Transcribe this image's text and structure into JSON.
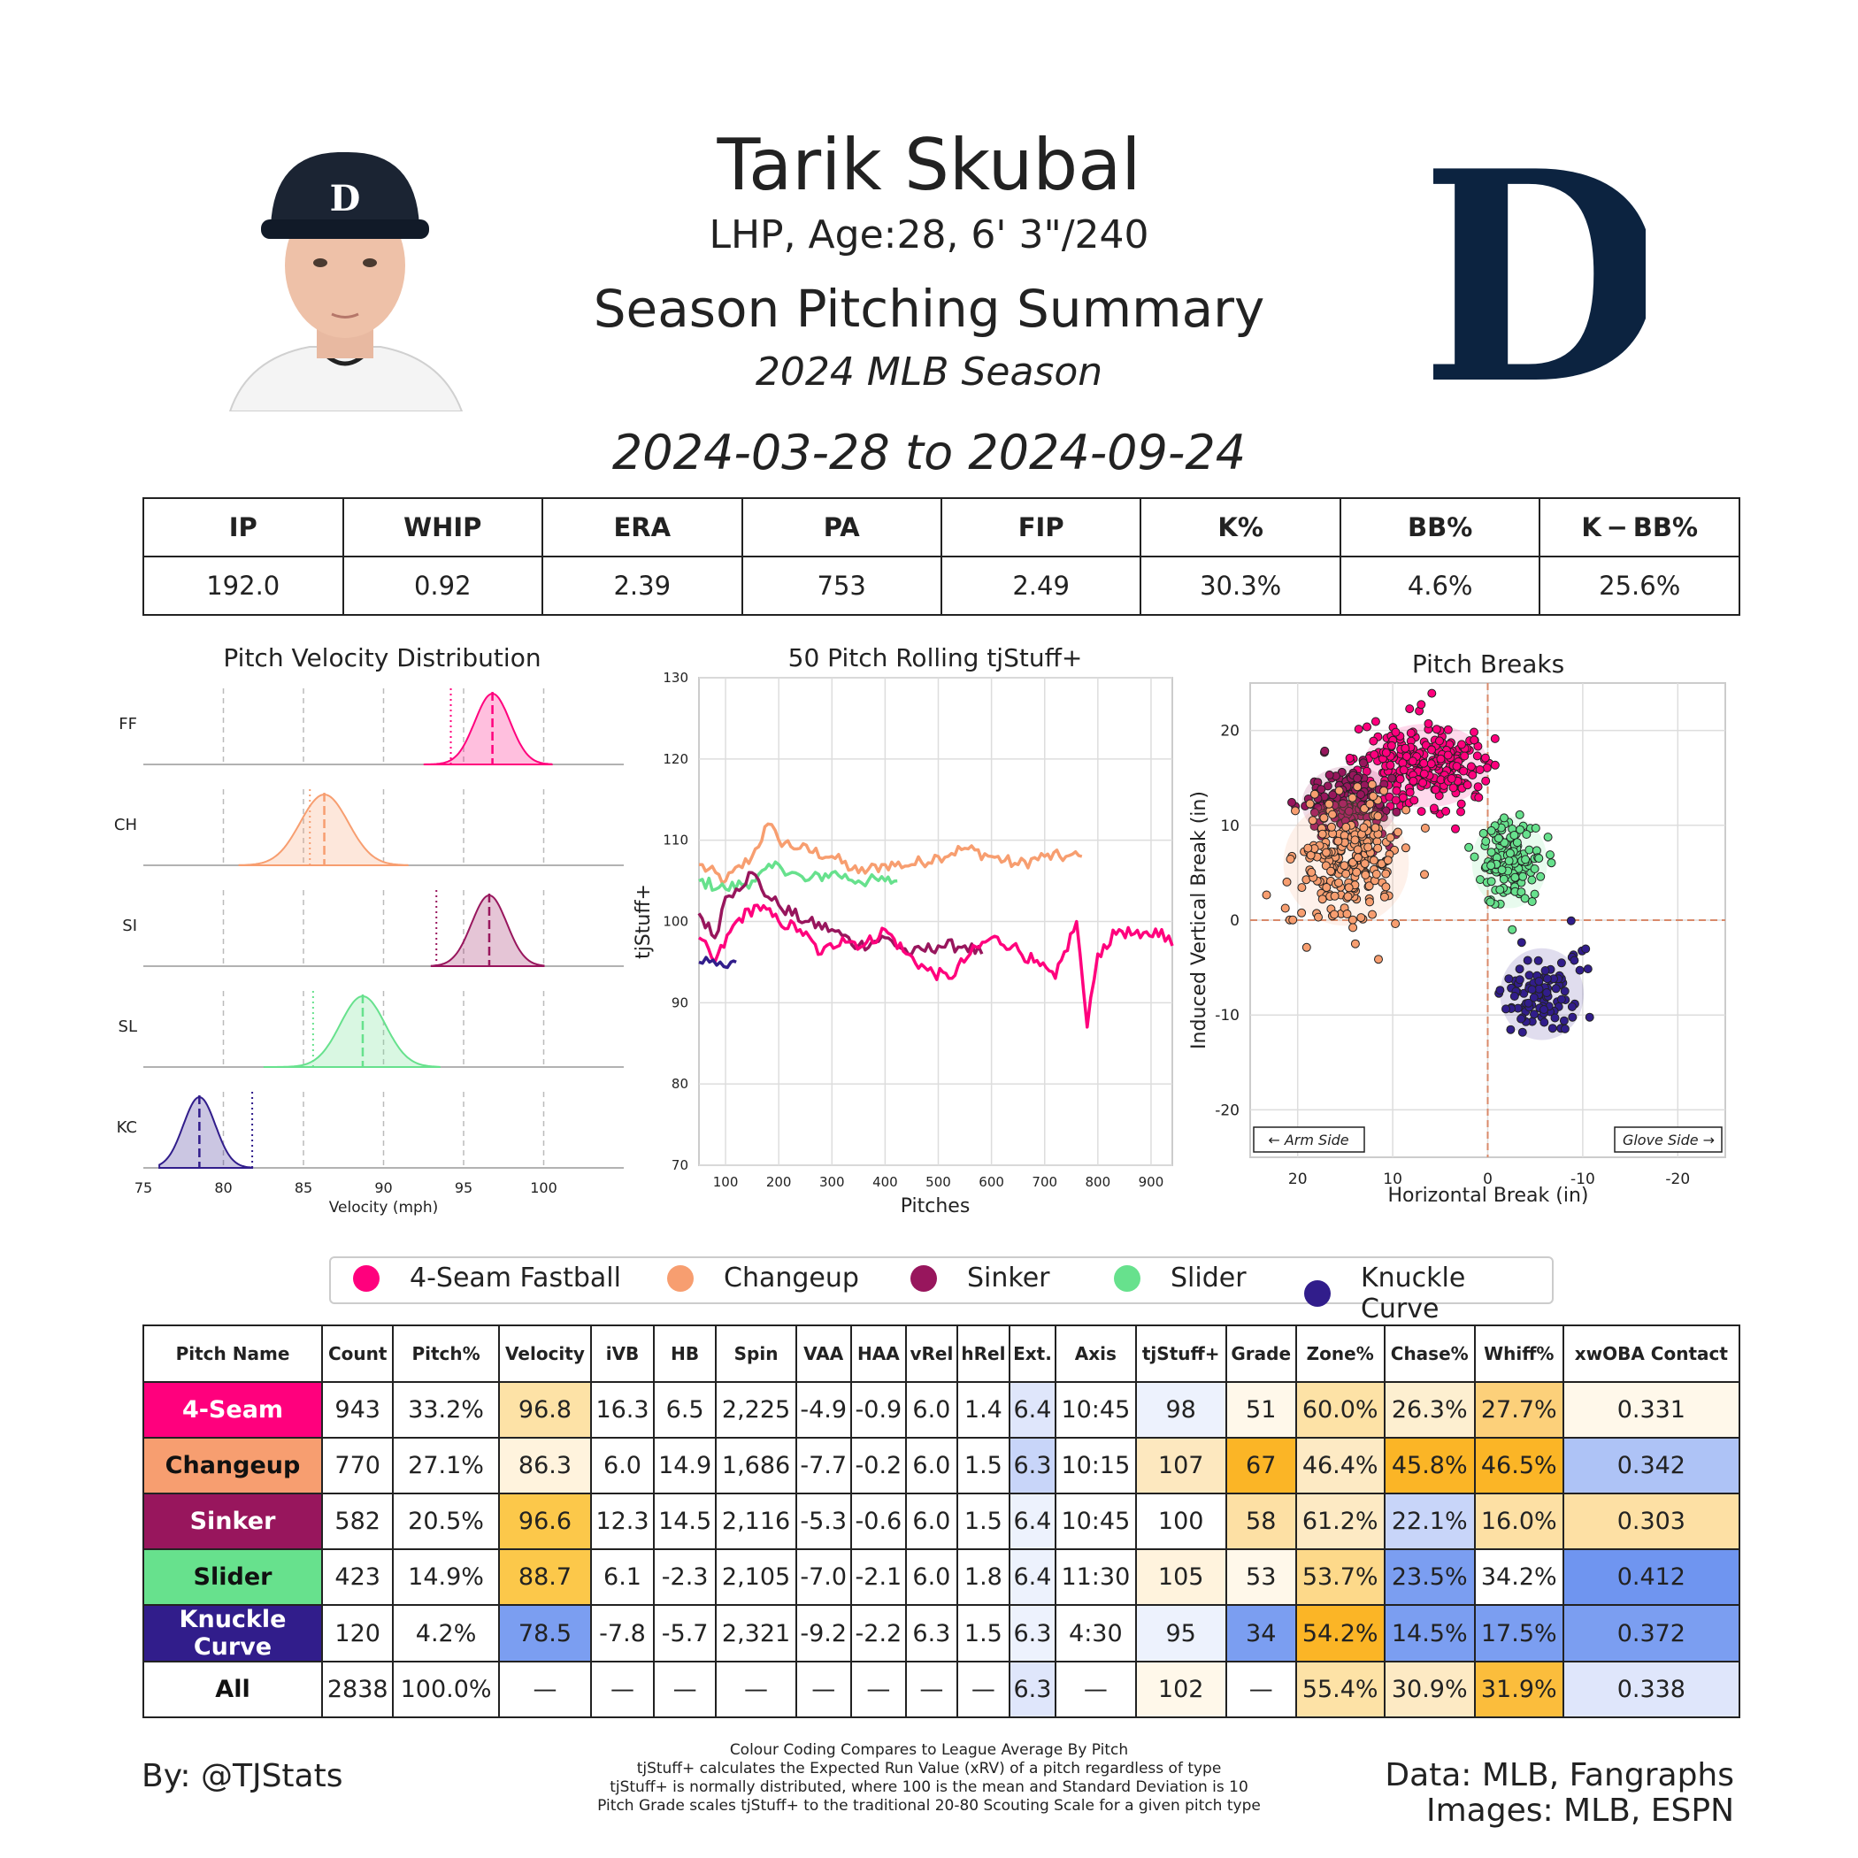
{
  "header": {
    "player_name": "Tarik Skubal",
    "player_info": "LHP, Age:28, 6' 3\"/240",
    "summary_title": "Season Pitching Summary",
    "season": "2024 MLB Season",
    "date_range": "2024-03-28 to 2024-09-24",
    "team_logo_letter": "D"
  },
  "stats": {
    "headers": [
      "IP",
      "WHIP",
      "ERA",
      "PA",
      "FIP",
      "K%",
      "BB%",
      "K − BB%"
    ],
    "values": [
      "192.0",
      "0.92",
      "2.39",
      "753",
      "2.49",
      "30.3%",
      "4.6%",
      "25.6%"
    ]
  },
  "colors": {
    "FF": "#ff007d",
    "CH": "#f79e70",
    "SI": "#98165d",
    "SL": "#67e18d",
    "KC": "#311d8b"
  },
  "legend": [
    "4-Seam Fastball",
    "Changeup",
    "Sinker",
    "Slider",
    "Knuckle Curve"
  ],
  "chart_data": [
    {
      "type": "area",
      "title": "Pitch Velocity Distribution",
      "xlabel": "Velocity (mph)",
      "xlim": [
        75,
        105
      ],
      "xticks": [
        75,
        80,
        85,
        90,
        95,
        100
      ],
      "series": [
        {
          "name": "FF",
          "mean": 96.8,
          "sd": 1.1,
          "league_avg": 94.2,
          "xmin": 92.5,
          "xmax": 100.5
        },
        {
          "name": "CH",
          "mean": 86.3,
          "sd": 1.5,
          "league_avg": 85.4,
          "xmin": 81,
          "xmax": 91.5
        },
        {
          "name": "SI",
          "mean": 96.6,
          "sd": 1.1,
          "league_avg": 93.3,
          "xmin": 93,
          "xmax": 100
        },
        {
          "name": "SL",
          "mean": 88.7,
          "sd": 1.4,
          "league_avg": 85.6,
          "xmin": 82.5,
          "xmax": 93.5
        },
        {
          "name": "KC",
          "mean": 78.5,
          "sd": 1.0,
          "league_avg": 81.8,
          "xmin": 76,
          "xmax": 81.8
        }
      ]
    },
    {
      "type": "line",
      "title": "50 Pitch Rolling tjStuff+",
      "xlabel": "Pitches",
      "ylabel": "tjStuff+",
      "xlim": [
        50,
        940
      ],
      "ylim": [
        70,
        130
      ],
      "xticks": [
        100,
        200,
        300,
        400,
        500,
        600,
        700,
        800,
        900
      ],
      "yticks": [
        70,
        80,
        90,
        100,
        110,
        120,
        130
      ],
      "series": [
        {
          "name": "CH",
          "x": [
            50,
            100,
            150,
            180,
            200,
            240,
            300,
            350,
            400,
            450,
            500,
            550,
            600,
            650,
            700,
            740,
            770
          ],
          "values": [
            107,
            105,
            108,
            112,
            110,
            109,
            108,
            106,
            107,
            107,
            108,
            109,
            108,
            107,
            108,
            108,
            108
          ]
        },
        {
          "name": "SL",
          "x": [
            50,
            100,
            150,
            200,
            250,
            300,
            350,
            400,
            423
          ],
          "values": [
            105,
            104,
            105,
            107,
            105,
            106,
            105,
            105,
            105
          ]
        },
        {
          "name": "SI",
          "x": [
            50,
            80,
            100,
            120,
            150,
            180,
            200,
            250,
            300,
            350,
            400,
            450,
            500,
            550,
            582
          ],
          "values": [
            101,
            98,
            103,
            104,
            106,
            103,
            102,
            100,
            99,
            97,
            98,
            96,
            97,
            97,
            96
          ]
        },
        {
          "name": "FF",
          "x": [
            50,
            80,
            120,
            160,
            200,
            240,
            280,
            320,
            360,
            400,
            440,
            480,
            520,
            560,
            600,
            640,
            680,
            720,
            760,
            780,
            800,
            840,
            880,
            920,
            940
          ],
          "values": [
            98,
            95,
            100,
            102,
            100,
            99,
            96,
            98,
            97,
            99,
            96,
            94,
            93,
            96,
            98,
            97,
            95,
            93,
            100,
            87,
            96,
            99,
            98,
            99,
            97
          ]
        },
        {
          "name": "KC",
          "x": [
            50,
            70,
            90,
            110,
            120
          ],
          "values": [
            95,
            95,
            95,
            95,
            95
          ]
        }
      ]
    },
    {
      "type": "scatter",
      "title": "Pitch Breaks",
      "xlabel": "Horizontal Break (in)",
      "ylabel": "Induced Vertical Break (in)",
      "xlim": [
        25,
        -25
      ],
      "ylim": [
        -25,
        25
      ],
      "xticks": [
        20,
        10,
        0,
        -10,
        -20
      ],
      "yticks": [
        20,
        10,
        0,
        -10,
        -20
      ],
      "annotations": [
        "← Arm Side",
        "Glove Side →"
      ],
      "series": [
        {
          "name": "FF",
          "center": [
            6.5,
            16.3
          ],
          "spread": [
            3.0,
            2.0
          ],
          "n": 260
        },
        {
          "name": "SI",
          "center": [
            14.5,
            12.3
          ],
          "spread": [
            2.3,
            1.8
          ],
          "n": 170
        },
        {
          "name": "CH",
          "center": [
            14.9,
            6.0
          ],
          "spread": [
            3.0,
            3.0
          ],
          "n": 230
        },
        {
          "name": "SL",
          "center": [
            -2.3,
            6.1
          ],
          "spread": [
            1.8,
            2.2
          ],
          "n": 140
        },
        {
          "name": "KC",
          "center": [
            -5.7,
            -7.8
          ],
          "spread": [
            2.0,
            2.2
          ],
          "n": 100
        }
      ]
    }
  ],
  "pitch_table": {
    "headers": [
      "Pitch Name",
      "Count",
      "Pitch%",
      "Velocity",
      "iVB",
      "HB",
      "Spin",
      "VAA",
      "HAA",
      "vRel",
      "hRel",
      "Ext.",
      "Axis",
      "tjStuff+",
      "Grade",
      "Zone%",
      "Chase%",
      "Whiff%",
      "xwOBA Contact"
    ],
    "rows": [
      {
        "name": "4-Seam",
        "color": "#ff007d",
        "text_color": "#ffffff",
        "cells": [
          "943",
          "33.2%",
          "96.8",
          "16.3",
          "6.5",
          "2,225",
          "-4.9",
          "-0.9",
          "6.0",
          "1.4",
          "6.4",
          "10:45",
          "98",
          "51",
          "60.0%",
          "26.3%",
          "27.7%",
          "0.331"
        ],
        "bg": {
          "3": "#fde2a6",
          "11": "#dfe6fb",
          "13": "#edf2fd",
          "14": "#fff8ea",
          "15": "#fde2a6",
          "16": "#fdefd0",
          "17": "#fcd07a",
          "18": "#fff8ea"
        }
      },
      {
        "name": "Changeup",
        "color": "#f79e70",
        "text_color": "#111111",
        "cells": [
          "770",
          "27.1%",
          "86.3",
          "6.0",
          "14.9",
          "1,686",
          "-7.7",
          "-0.2",
          "6.0",
          "1.5",
          "6.3",
          "10:15",
          "107",
          "67",
          "46.4%",
          "45.8%",
          "46.5%",
          "0.342"
        ],
        "bg": {
          "3": "#fff3dd",
          "11": "#c8d5f9",
          "13": "#fde8bf",
          "14": "#fbb526",
          "15": "#fdeac4",
          "16": "#fbb526",
          "17": "#fbb526",
          "18": "#aec3f6"
        }
      },
      {
        "name": "Sinker",
        "color": "#98165d",
        "text_color": "#ffffff",
        "cells": [
          "582",
          "20.5%",
          "96.6",
          "12.3",
          "14.5",
          "2,116",
          "-5.3",
          "-0.6",
          "6.0",
          "1.5",
          "6.4",
          "10:45",
          "100",
          "58",
          "61.2%",
          "22.1%",
          "16.0%",
          "0.303"
        ],
        "bg": {
          "3": "#fcc84a",
          "11": "#edf2fd",
          "13": "#ffffff",
          "14": "#fde0a4",
          "15": "#fdeac4",
          "16": "#c8d5f9",
          "17": "#fde0a4",
          "18": "#fde0a4"
        }
      },
      {
        "name": "Slider",
        "color": "#67e18d",
        "text_color": "#111111",
        "cells": [
          "423",
          "14.9%",
          "88.7",
          "6.1",
          "-2.3",
          "2,105",
          "-7.0",
          "-2.1",
          "6.0",
          "1.8",
          "6.4",
          "11:30",
          "105",
          "53",
          "53.7%",
          "23.5%",
          "34.2%",
          "0.412"
        ],
        "bg": {
          "3": "#fcc84a",
          "11": "#edf2fd",
          "13": "#fff3dd",
          "14": "#fff8ea",
          "15": "#fdd98a",
          "16": "#7b9ef1",
          "17": "#ffffff",
          "18": "#6f95f0"
        }
      },
      {
        "name": "Knuckle Curve",
        "color": "#311d8b",
        "text_color": "#ffffff",
        "cells": [
          "120",
          "4.2%",
          "78.5",
          "-7.8",
          "-5.7",
          "2,321",
          "-9.2",
          "-2.2",
          "6.3",
          "1.5",
          "6.3",
          "4:30",
          "95",
          "34",
          "54.2%",
          "14.5%",
          "17.5%",
          "0.372"
        ],
        "bg": {
          "3": "#7b9ef1",
          "11": "#edf2fd",
          "13": "#edf2fd",
          "14": "#7b9ef1",
          "15": "#fbb526",
          "16": "#7b9ef1",
          "17": "#7b9ef1",
          "18": "#7b9ef1"
        }
      },
      {
        "name": "All",
        "color": "#ffffff",
        "text_color": "#111111",
        "cells": [
          "2838",
          "100.0%",
          "—",
          "—",
          "—",
          "—",
          "—",
          "—",
          "—",
          "—",
          "6.3",
          "—",
          "102",
          "—",
          "55.4%",
          "30.9%",
          "31.9%",
          "0.338"
        ],
        "bg": {
          "11": "#dfe6fb",
          "13": "#fff8ea",
          "15": "#fde2a6",
          "16": "#fdeac4",
          "17": "#fbbd3c",
          "18": "#dfe6fb"
        }
      }
    ]
  },
  "footer": {
    "by": "By: @TJStats",
    "data_source": "Data: MLB, Fangraphs",
    "images_source": "Images: MLB, ESPN",
    "notes": [
      "Colour Coding Compares to League Average By Pitch",
      "tjStuff+ calculates the Expected Run Value (xRV) of a pitch regardless of type",
      "tjStuff+ is normally distributed, where 100 is the mean and Standard Deviation is 10",
      "Pitch Grade scales tjStuff+ to the traditional 20-80 Scouting Scale for a given pitch type"
    ]
  }
}
